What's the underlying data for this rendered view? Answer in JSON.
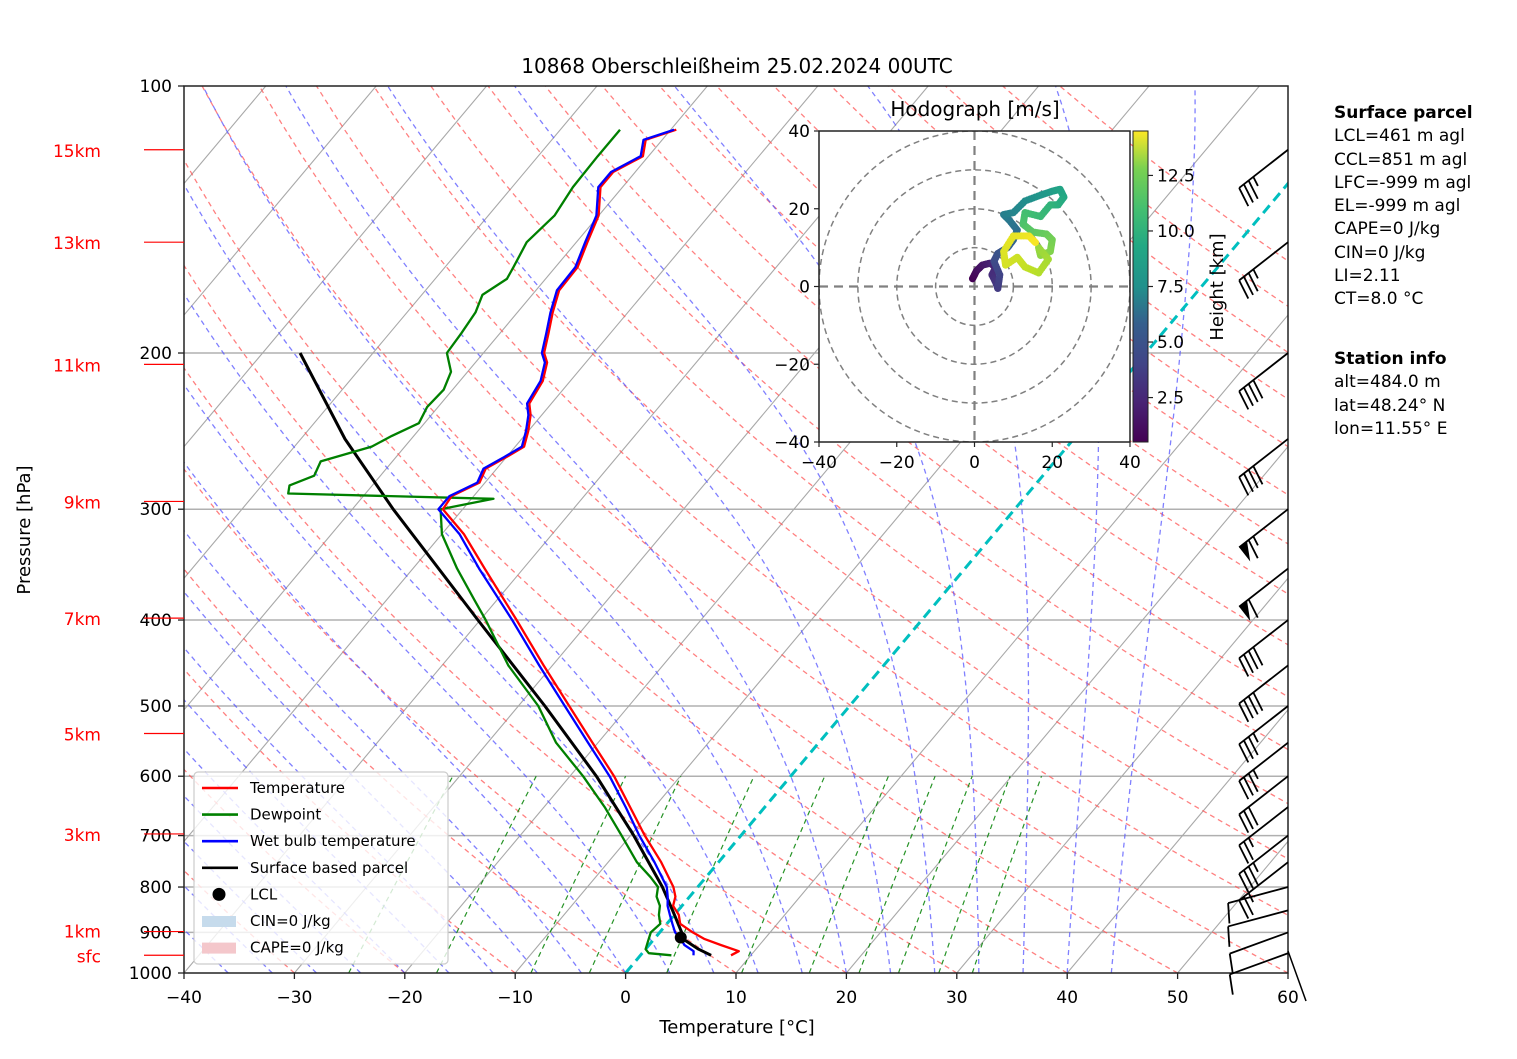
{
  "chart_data": [
    {
      "type": "line",
      "subtype": "skew-T log-p",
      "title": "10868 Oberschleißheim 25.02.2024 00UTC",
      "xlabel": "Temperature [°C]",
      "ylabel": "Pressure [hPa]",
      "xlim": [
        -40,
        60
      ],
      "ylim": [
        1000,
        100
      ],
      "yscale": "log",
      "xticks": [
        "−40",
        "−30",
        "−20",
        "−10",
        "0",
        "10",
        "20",
        "30",
        "40",
        "50",
        "60"
      ],
      "xtick_values": [
        -40,
        -30,
        -20,
        -10,
        0,
        10,
        20,
        30,
        40,
        50,
        60
      ],
      "yticks": [
        "100",
        "200",
        "300",
        "400",
        "500",
        "600",
        "700",
        "800",
        "900",
        "1000"
      ],
      "ytick_values": [
        100,
        200,
        300,
        400,
        500,
        600,
        700,
        800,
        900,
        1000
      ],
      "height_labels": [
        {
          "label": "15km",
          "p": 118
        },
        {
          "label": "13km",
          "p": 150
        },
        {
          "label": "11km",
          "p": 206
        },
        {
          "label": "9km",
          "p": 294
        },
        {
          "label": "7km",
          "p": 398
        },
        {
          "label": "5km",
          "p": 537
        },
        {
          "label": "3km",
          "p": 697
        },
        {
          "label": "1km",
          "p": 898
        },
        {
          "label": "sfc",
          "p": 955
        }
      ],
      "grid": true,
      "legend_position": "lower-left",
      "legend": [
        {
          "label": "Temperature",
          "color": "#ff0000",
          "kind": "line"
        },
        {
          "label": "Dewpoint",
          "color": "#008000",
          "kind": "line"
        },
        {
          "label": "Wet bulb temperature",
          "color": "#0000ff",
          "kind": "line"
        },
        {
          "label": "Surface based parcel",
          "color": "#000000",
          "kind": "line"
        },
        {
          "label": "LCL",
          "color": "#000000",
          "kind": "dot"
        },
        {
          "label": "CIN=0 J/kg",
          "color": "#c6dbec",
          "kind": "patch"
        },
        {
          "label": "CAPE=0 J/kg",
          "color": "#f4c7cb",
          "kind": "patch"
        }
      ],
      "series": [
        {
          "name": "Temperature",
          "color": "#ff0000",
          "points": [
            [
              955,
              8.2
            ],
            [
              945,
              8.6
            ],
            [
              930,
              6.5
            ],
            [
              915,
              4.5
            ],
            [
              900,
              3.0
            ],
            [
              880,
              1.2
            ],
            [
              860,
              0.4
            ],
            [
              840,
              -0.8
            ],
            [
              820,
              -1.3
            ],
            [
              800,
              -2.2
            ],
            [
              750,
              -5.2
            ],
            [
              700,
              -8.7
            ],
            [
              650,
              -12.2
            ],
            [
              600,
              -16.0
            ],
            [
              550,
              -20.5
            ],
            [
              500,
              -25.4
            ],
            [
              450,
              -30.8
            ],
            [
              400,
              -36.7
            ],
            [
              350,
              -43.5
            ],
            [
              320,
              -48.0
            ],
            [
              300,
              -51.8
            ],
            [
              290,
              -52.0
            ],
            [
              280,
              -50.5
            ],
            [
              270,
              -51.0
            ],
            [
              262,
              -50.0
            ],
            [
              255,
              -49.2
            ],
            [
              245,
              -50.0
            ],
            [
              235,
              -51.0
            ],
            [
              228,
              -52.0
            ],
            [
              215,
              -52.5
            ],
            [
              205,
              -53.5
            ],
            [
              200,
              -54.5
            ],
            [
              190,
              -55.6
            ],
            [
              180,
              -56.8
            ],
            [
              170,
              -57.9
            ],
            [
              160,
              -58.0
            ],
            [
              150,
              -59.0
            ],
            [
              140,
              -60.0
            ],
            [
              130,
              -62.0
            ],
            [
              125,
              -62.0
            ],
            [
              120,
              -60.5
            ],
            [
              115,
              -61.5
            ],
            [
              112,
              -59.5
            ]
          ]
        },
        {
          "name": "Wet bulb temperature",
          "color": "#0000ff",
          "points": [
            [
              955,
              4.8
            ],
            [
              945,
              4.5
            ],
            [
              930,
              3.2
            ],
            [
              915,
              2.4
            ],
            [
              900,
              1.4
            ],
            [
              880,
              0.5
            ],
            [
              860,
              -0.4
            ],
            [
              840,
              -1.3
            ],
            [
              820,
              -2.0
            ],
            [
              800,
              -2.8
            ],
            [
              750,
              -5.8
            ],
            [
              700,
              -9.2
            ],
            [
              650,
              -12.6
            ],
            [
              600,
              -16.4
            ],
            [
              550,
              -20.9
            ],
            [
              500,
              -25.8
            ],
            [
              450,
              -31.2
            ],
            [
              400,
              -37.1
            ],
            [
              350,
              -44.0
            ],
            [
              320,
              -48.4
            ],
            [
              300,
              -52.2
            ],
            [
              290,
              -52.2
            ],
            [
              280,
              -50.7
            ],
            [
              270,
              -51.2
            ],
            [
              262,
              -50.2
            ],
            [
              255,
              -49.4
            ],
            [
              245,
              -50.2
            ],
            [
              235,
              -51.2
            ],
            [
              228,
              -52.2
            ],
            [
              215,
              -52.7
            ],
            [
              205,
              -53.7
            ],
            [
              200,
              -54.7
            ],
            [
              190,
              -55.8
            ],
            [
              180,
              -57.0
            ],
            [
              170,
              -58.1
            ],
            [
              160,
              -58.2
            ],
            [
              150,
              -59.2
            ],
            [
              140,
              -60.2
            ],
            [
              130,
              -62.2
            ],
            [
              125,
              -62.2
            ],
            [
              120,
              -60.7
            ],
            [
              115,
              -61.7
            ],
            [
              112,
              -59.7
            ]
          ]
        },
        {
          "name": "Dewpoint",
          "color": "#008000",
          "points": [
            [
              955,
              2.8
            ],
            [
              950,
              0.6
            ],
            [
              940,
              0.0
            ],
            [
              920,
              -0.4
            ],
            [
              900,
              -0.8
            ],
            [
              880,
              -0.6
            ],
            [
              860,
              -1.4
            ],
            [
              840,
              -2.0
            ],
            [
              820,
              -3.0
            ],
            [
              800,
              -3.6
            ],
            [
              780,
              -5.0
            ],
            [
              750,
              -7.4
            ],
            [
              700,
              -10.8
            ],
            [
              650,
              -14.5
            ],
            [
              600,
              -18.8
            ],
            [
              550,
              -23.8
            ],
            [
              500,
              -28.2
            ],
            [
              450,
              -34.0
            ],
            [
              400,
              -39.5
            ],
            [
              380,
              -42.0
            ],
            [
              350,
              -46.0
            ],
            [
              320,
              -50.0
            ],
            [
              300,
              -52.0
            ],
            [
              292,
              -48.0
            ],
            [
              288,
              -67.0
            ],
            [
              282,
              -67.5
            ],
            [
              275,
              -66.0
            ],
            [
              265,
              -66.5
            ],
            [
              255,
              -63.0
            ],
            [
              248,
              -62.0
            ],
            [
              240,
              -60.5
            ],
            [
              230,
              -61.0
            ],
            [
              220,
              -60.8
            ],
            [
              210,
              -61.5
            ],
            [
              200,
              -63.3
            ],
            [
              190,
              -63.5
            ],
            [
              180,
              -63.8
            ],
            [
              172,
              -64.5
            ],
            [
              165,
              -63.5
            ],
            [
              160,
              -63.8
            ],
            [
              150,
              -64.5
            ],
            [
              140,
              -64.0
            ],
            [
              130,
              -64.5
            ],
            [
              120,
              -64.6
            ],
            [
              112,
              -64.6
            ]
          ]
        },
        {
          "name": "Surface based parcel",
          "color": "#000000",
          "points": [
            [
              955,
              6.4
            ],
            [
              940,
              4.8
            ],
            [
              912,
              2.3
            ],
            [
              900,
              2.0
            ],
            [
              850,
              -0.5
            ],
            [
              800,
              -3.2
            ],
            [
              700,
              -9.7
            ],
            [
              600,
              -17.6
            ],
            [
              500,
              -27.6
            ],
            [
              400,
              -40.2
            ],
            [
              300,
              -56.3
            ],
            [
              250,
              -66.0
            ],
            [
              200,
              -76.6
            ]
          ]
        }
      ],
      "lcl_marker": {
        "label": "LCL",
        "p": 912,
        "t": 2.3
      },
      "reference_lines": {
        "isotherm_0C": {
          "color": "#00bfbf"
        },
        "dry_adiabats": {
          "color": "#ff5555"
        },
        "moist_adiabats": {
          "color": "#5555ff"
        },
        "mixing_ratio_lines": {
          "color": "#008000"
        },
        "isotherms": {
          "color": "#a0a0a0"
        }
      },
      "wind_barbs": [
        {
          "p": 118,
          "speed_kt": 35
        },
        {
          "p": 150,
          "speed_kt": 35
        },
        {
          "p": 200,
          "speed_kt": 40
        },
        {
          "p": 250,
          "speed_kt": 40
        },
        {
          "p": 300,
          "speed_kt": 65
        },
        {
          "p": 350,
          "speed_kt": 60
        },
        {
          "p": 400,
          "speed_kt": 40
        },
        {
          "p": 450,
          "speed_kt": 40
        },
        {
          "p": 500,
          "speed_kt": 35
        },
        {
          "p": 550,
          "speed_kt": 35
        },
        {
          "p": 600,
          "speed_kt": 30
        },
        {
          "p": 650,
          "speed_kt": 25
        },
        {
          "p": 700,
          "speed_kt": 35
        },
        {
          "p": 750,
          "speed_kt": 25
        },
        {
          "p": 800,
          "speed_kt": 10
        },
        {
          "p": 850,
          "speed_kt": 10
        },
        {
          "p": 900,
          "speed_kt": 10
        },
        {
          "p": 950,
          "speed_kt": 10
        }
      ]
    },
    {
      "type": "scatter",
      "subtype": "hodograph",
      "title": "Hodograph [m/s]",
      "xlim": [
        -40,
        40
      ],
      "ylim": [
        -40,
        40
      ],
      "xticks": [
        "−40",
        "−20",
        "0",
        "20",
        "40"
      ],
      "yticks": [
        "40",
        "20",
        "0",
        "−20",
        "−40"
      ],
      "rings": [
        10,
        20,
        30,
        40
      ],
      "colorbar": {
        "label": "Height [km]",
        "ticks": [
          "2.5",
          "5.0",
          "7.5",
          "10.0",
          "12.5"
        ],
        "tick_values": [
          2.5,
          5.0,
          7.5,
          10.0,
          12.5
        ],
        "range": [
          0.5,
          14.5
        ],
        "colormap": "viridis"
      },
      "points": [
        {
          "u": -0.5,
          "v": 2,
          "h": 0.5
        },
        {
          "u": 0.5,
          "v": 4,
          "h": 0.9
        },
        {
          "u": 2,
          "v": 5.5,
          "h": 1.3
        },
        {
          "u": 4,
          "v": 6,
          "h": 1.7
        },
        {
          "u": 5.5,
          "v": 5,
          "h": 2.0
        },
        {
          "u": 4.5,
          "v": 3,
          "h": 2.3
        },
        {
          "u": 5.5,
          "v": 1,
          "h": 2.6
        },
        {
          "u": 6,
          "v": -0.5,
          "h": 2.9
        },
        {
          "u": 6.5,
          "v": 3,
          "h": 3.3
        },
        {
          "u": 5,
          "v": 6.5,
          "h": 3.6
        },
        {
          "u": 6,
          "v": 8.5,
          "h": 4.0
        },
        {
          "u": 8.5,
          "v": 10,
          "h": 4.5
        },
        {
          "u": 10,
          "v": 12,
          "h": 5.0
        },
        {
          "u": 11,
          "v": 14.5,
          "h": 5.5
        },
        {
          "u": 9,
          "v": 17,
          "h": 6.0
        },
        {
          "u": 7.5,
          "v": 18.5,
          "h": 6.4
        },
        {
          "u": 10,
          "v": 19,
          "h": 6.8
        },
        {
          "u": 13,
          "v": 22,
          "h": 7.3
        },
        {
          "u": 17,
          "v": 23.5,
          "h": 7.8
        },
        {
          "u": 20,
          "v": 24.5,
          "h": 8.2
        },
        {
          "u": 22,
          "v": 25,
          "h": 8.6
        },
        {
          "u": 23,
          "v": 23,
          "h": 8.9
        },
        {
          "u": 21.5,
          "v": 21,
          "h": 9.2
        },
        {
          "u": 19.5,
          "v": 21,
          "h": 9.5
        },
        {
          "u": 17,
          "v": 18,
          "h": 9.9
        },
        {
          "u": 13,
          "v": 19,
          "h": 10.2
        },
        {
          "u": 12.5,
          "v": 16,
          "h": 10.5
        },
        {
          "u": 15,
          "v": 14,
          "h": 10.9
        },
        {
          "u": 18.5,
          "v": 13.5,
          "h": 11.2
        },
        {
          "u": 20,
          "v": 12,
          "h": 11.5
        },
        {
          "u": 19.5,
          "v": 9,
          "h": 11.8
        },
        {
          "u": 17,
          "v": 8,
          "h": 12.1
        },
        {
          "u": 16.5,
          "v": 10,
          "h": 12.3
        },
        {
          "u": 19,
          "v": 7,
          "h": 12.6
        },
        {
          "u": 16.5,
          "v": 3.5,
          "h": 12.9
        },
        {
          "u": 13,
          "v": 5,
          "h": 13.2
        },
        {
          "u": 11,
          "v": 7.5,
          "h": 13.4
        },
        {
          "u": 8,
          "v": 5.5,
          "h": 13.6
        },
        {
          "u": 7.5,
          "v": 9,
          "h": 13.8
        },
        {
          "u": 10,
          "v": 13,
          "h": 14.0
        },
        {
          "u": 14,
          "v": 13,
          "h": 14.2
        },
        {
          "u": 16,
          "v": 11,
          "h": 14.4
        }
      ]
    }
  ],
  "info_panel": {
    "surface_parcel": {
      "heading": "Surface parcel",
      "lines": [
        "LCL=461 m agl",
        "CCL=851 m agl",
        "LFC=-999 m agl",
        "EL=-999 m agl",
        "CAPE=0 J/kg",
        "CIN=0 J/kg",
        "LI=2.11",
        "CT=8.0 °C"
      ]
    },
    "station_info": {
      "heading": "Station info",
      "lines": [
        "alt=484.0 m",
        "lat=48.24° N",
        "lon=11.55° E"
      ]
    }
  }
}
